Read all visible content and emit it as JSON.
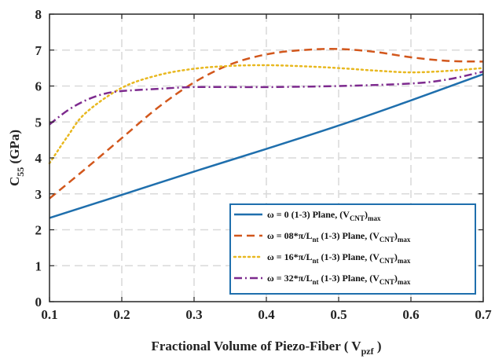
{
  "chart_data": {
    "type": "line",
    "title": "",
    "xlabel_main": "Fractional Volume of Piezo-Fiber ( V",
    "xlabel_sub": "pzf",
    "xlabel_tail": " )",
    "ylabel_main": "C",
    "ylabel_sub": "55",
    "ylabel_tail": " (GPa)",
    "xlim": [
      0.1,
      0.7
    ],
    "ylim": [
      0,
      8
    ],
    "xticks": [
      "0.1",
      "0.2",
      "0.3",
      "0.4",
      "0.5",
      "0.6",
      "0.7"
    ],
    "yticks": [
      "0",
      "1",
      "2",
      "3",
      "4",
      "5",
      "6",
      "7",
      "8"
    ],
    "grid": true,
    "legend_position": "bottom-right",
    "series": [
      {
        "name_parts": [
          {
            "t": "ω = 0 (1-3) Plane, (V"
          },
          {
            "t": "CNT",
            "sub": true
          },
          {
            "t": ")"
          },
          {
            "t": "max",
            "sub": true
          }
        ],
        "color": "#1f6fad",
        "dash": "solid",
        "x": [
          0.1,
          0.2,
          0.3,
          0.4,
          0.5,
          0.6,
          0.7
        ],
        "y": [
          2.33,
          2.97,
          3.62,
          4.25,
          4.9,
          5.6,
          6.33
        ]
      },
      {
        "name_parts": [
          {
            "t": "ω = 08*π/L"
          },
          {
            "t": "nt",
            "sub": true
          },
          {
            "t": " (1-3) Plane, (V"
          },
          {
            "t": "CNT",
            "sub": true
          },
          {
            "t": ")"
          },
          {
            "t": "max",
            "sub": true
          }
        ],
        "color": "#d2571c",
        "dash": "dashed",
        "x": [
          0.1,
          0.15,
          0.2,
          0.25,
          0.3,
          0.35,
          0.4,
          0.45,
          0.5,
          0.55,
          0.6,
          0.65,
          0.7
        ],
        "y": [
          2.87,
          3.7,
          4.55,
          5.4,
          6.1,
          6.6,
          6.88,
          7.0,
          7.03,
          6.95,
          6.8,
          6.7,
          6.68
        ]
      },
      {
        "name_parts": [
          {
            "t": "ω = 16*π/L"
          },
          {
            "t": "nt",
            "sub": true
          },
          {
            "t": " (1-3) Plane, (V"
          },
          {
            "t": "CNT",
            "sub": true
          },
          {
            "t": ")"
          },
          {
            "t": "max",
            "sub": true
          }
        ],
        "color": "#e8b820",
        "dash": "dotted",
        "x": [
          0.1,
          0.125,
          0.15,
          0.2,
          0.25,
          0.3,
          0.35,
          0.4,
          0.45,
          0.5,
          0.55,
          0.6,
          0.65,
          0.7
        ],
        "y": [
          3.85,
          4.6,
          5.25,
          5.95,
          6.3,
          6.48,
          6.56,
          6.58,
          6.55,
          6.5,
          6.43,
          6.38,
          6.42,
          6.5
        ]
      },
      {
        "name_parts": [
          {
            "t": "ω = 32*π/L"
          },
          {
            "t": "nt",
            "sub": true
          },
          {
            "t": " (1-3) Plane, (V"
          },
          {
            "t": "CNT",
            "sub": true
          },
          {
            "t": ")"
          },
          {
            "t": "max",
            "sub": true
          }
        ],
        "color": "#7d2a8e",
        "dash": "dashdot",
        "x": [
          0.1,
          0.125,
          0.15,
          0.175,
          0.2,
          0.25,
          0.3,
          0.4,
          0.5,
          0.6,
          0.65,
          0.7
        ],
        "y": [
          4.93,
          5.32,
          5.6,
          5.78,
          5.86,
          5.92,
          5.97,
          5.97,
          6.0,
          6.07,
          6.18,
          6.4
        ]
      }
    ]
  }
}
